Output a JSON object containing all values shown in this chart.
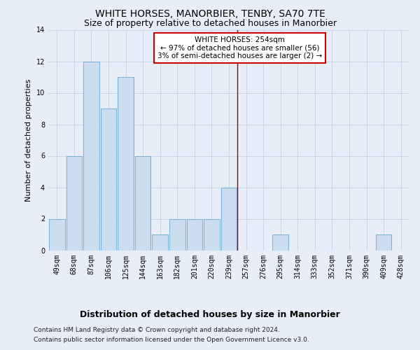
{
  "title": "WHITE HORSES, MANORBIER, TENBY, SA70 7TE",
  "subtitle": "Size of property relative to detached houses in Manorbier",
  "xlabel": "Distribution of detached houses by size in Manorbier",
  "ylabel": "Number of detached properties",
  "categories": [
    "49sqm",
    "68sqm",
    "87sqm",
    "106sqm",
    "125sqm",
    "144sqm",
    "163sqm",
    "182sqm",
    "201sqm",
    "220sqm",
    "239sqm",
    "257sqm",
    "276sqm",
    "295sqm",
    "314sqm",
    "333sqm",
    "352sqm",
    "371sqm",
    "390sqm",
    "409sqm",
    "428sqm"
  ],
  "values": [
    2,
    6,
    12,
    9,
    11,
    6,
    1,
    2,
    2,
    2,
    4,
    0,
    0,
    1,
    0,
    0,
    0,
    0,
    0,
    1,
    0
  ],
  "bar_color": "#ccddf0",
  "bar_edge_color": "#7aafd4",
  "grid_color": "#c8d4e8",
  "background_color": "#e8eef8",
  "vline_x_index": 10.5,
  "vline_color": "#990000",
  "annotation_line1": "WHITE HORSES: 254sqm",
  "annotation_line2": "← 97% of detached houses are smaller (56)",
  "annotation_line3": "3% of semi-detached houses are larger (2) →",
  "annotation_box_color": "#ffffff",
  "annotation_border_color": "#cc0000",
  "ylim": [
    0,
    14
  ],
  "yticks": [
    0,
    2,
    4,
    6,
    8,
    10,
    12,
    14
  ],
  "footer_line1": "Contains HM Land Registry data © Crown copyright and database right 2024.",
  "footer_line2": "Contains public sector information licensed under the Open Government Licence v3.0.",
  "title_fontsize": 10,
  "subtitle_fontsize": 9,
  "xlabel_fontsize": 9,
  "ylabel_fontsize": 8,
  "tick_fontsize": 7,
  "annotation_fontsize": 7.5,
  "footer_fontsize": 6.5
}
